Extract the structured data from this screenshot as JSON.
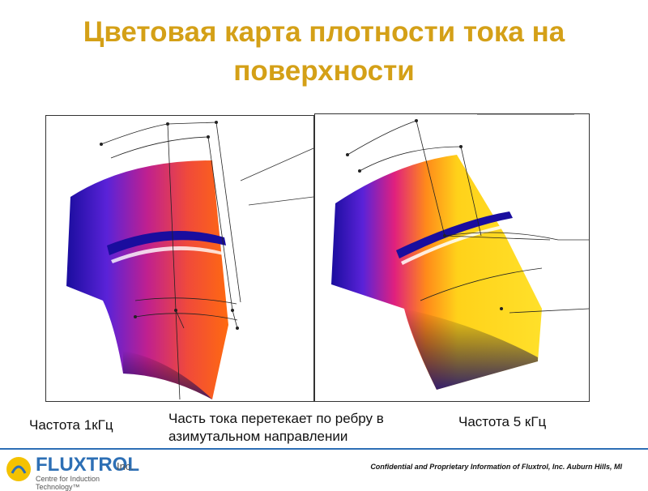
{
  "slide": {
    "title": "Цветовая карта плотности тока на поверхности"
  },
  "images": {
    "left_label": "Частота 1кГц",
    "middle_label": "Часть тока перетекает по ребру в азимутальном направлении",
    "right_label": "Частота 5 кГц"
  },
  "footer": {
    "logo_name": "FLUXTROL",
    "logo_suffix": "Inc.",
    "logo_tagline": "Centre for Induction Technology™",
    "confidential": "Confidential and Proprietary Information of Fluxtrol, Inc. Auburn Hills, MI",
    "accent_color": "#2d6fb5"
  },
  "colors": {
    "title": "#d4a017",
    "low_density": "#1a0d9e",
    "mid_density": "#d8208c",
    "high_density_1khz": "#ff5a1f",
    "high_density_5khz": "#ffd21a"
  }
}
